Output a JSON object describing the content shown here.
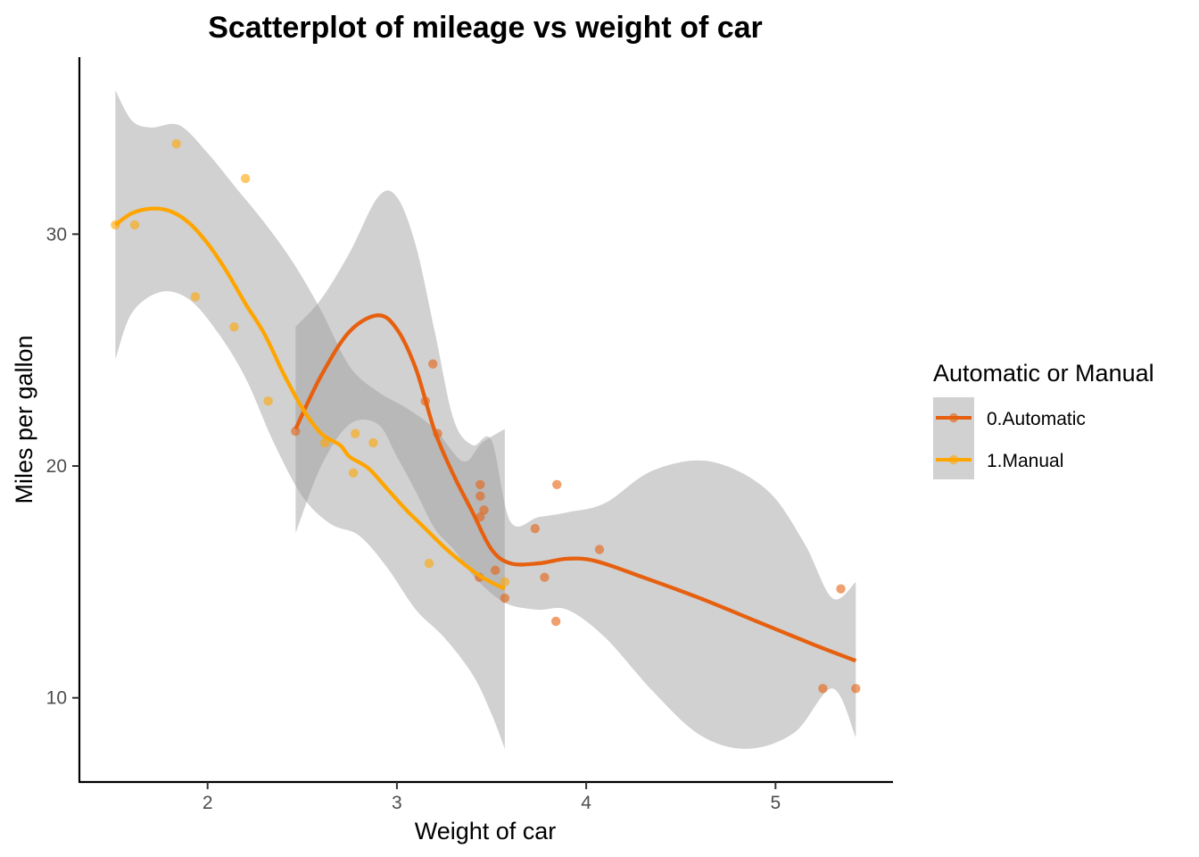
{
  "chart_data": {
    "type": "scatter",
    "title": "Scatterplot of mileage vs weight of car",
    "xlabel": "Weight of car",
    "ylabel": "Miles per gallon",
    "xlim": [
      1.3,
      5.6
    ],
    "ylim": [
      6.5,
      35.8
    ],
    "xticks": [
      2,
      3,
      4,
      5
    ],
    "yticks": [
      10,
      20,
      30
    ],
    "grid": false,
    "smoother": "loess with grey confidence band",
    "legend": {
      "title": "Automatic or Manual",
      "placement": "right"
    },
    "series": [
      {
        "name": "0.Automatic",
        "color": "#e6600f",
        "points": [
          {
            "x": 2.465,
            "y": 21.5
          },
          {
            "x": 3.15,
            "y": 22.8
          },
          {
            "x": 3.19,
            "y": 24.4
          },
          {
            "x": 3.215,
            "y": 21.4
          },
          {
            "x": 3.435,
            "y": 15.2
          },
          {
            "x": 3.44,
            "y": 18.7
          },
          {
            "x": 3.44,
            "y": 19.2
          },
          {
            "x": 3.44,
            "y": 17.8
          },
          {
            "x": 3.46,
            "y": 18.1
          },
          {
            "x": 3.52,
            "y": 15.5
          },
          {
            "x": 3.57,
            "y": 14.3
          },
          {
            "x": 3.73,
            "y": 17.3
          },
          {
            "x": 3.78,
            "y": 15.2
          },
          {
            "x": 3.84,
            "y": 13.3
          },
          {
            "x": 3.845,
            "y": 19.2
          },
          {
            "x": 4.07,
            "y": 16.4
          },
          {
            "x": 5.25,
            "y": 10.4
          },
          {
            "x": 5.345,
            "y": 14.7
          },
          {
            "x": 5.424,
            "y": 10.4
          }
        ],
        "smooth": [
          {
            "x": 2.465,
            "y": 21.6
          },
          {
            "x": 2.6,
            "y": 23.9
          },
          {
            "x": 2.75,
            "y": 25.8
          },
          {
            "x": 2.9,
            "y": 26.5
          },
          {
            "x": 3.0,
            "y": 25.9
          },
          {
            "x": 3.1,
            "y": 24.2
          },
          {
            "x": 3.2,
            "y": 21.5
          },
          {
            "x": 3.3,
            "y": 19.6
          },
          {
            "x": 3.4,
            "y": 18.0
          },
          {
            "x": 3.5,
            "y": 16.4
          },
          {
            "x": 3.6,
            "y": 15.8
          },
          {
            "x": 3.75,
            "y": 15.8
          },
          {
            "x": 3.9,
            "y": 16.0
          },
          {
            "x": 4.05,
            "y": 15.9
          },
          {
            "x": 4.3,
            "y": 15.2
          },
          {
            "x": 4.6,
            "y": 14.3
          },
          {
            "x": 4.9,
            "y": 13.3
          },
          {
            "x": 5.2,
            "y": 12.3
          },
          {
            "x": 5.424,
            "y": 11.6
          }
        ],
        "band_upper": [
          {
            "x": 2.465,
            "y": 26.0
          },
          {
            "x": 2.6,
            "y": 27.2
          },
          {
            "x": 2.75,
            "y": 29.2
          },
          {
            "x": 2.9,
            "y": 31.6
          },
          {
            "x": 3.0,
            "y": 31.6
          },
          {
            "x": 3.1,
            "y": 29.5
          },
          {
            "x": 3.2,
            "y": 25.8
          },
          {
            "x": 3.3,
            "y": 22.0
          },
          {
            "x": 3.4,
            "y": 20.9
          },
          {
            "x": 3.5,
            "y": 21.1
          },
          {
            "x": 3.6,
            "y": 17.6
          },
          {
            "x": 3.75,
            "y": 17.8
          },
          {
            "x": 3.9,
            "y": 18.0
          },
          {
            "x": 4.1,
            "y": 18.4
          },
          {
            "x": 4.35,
            "y": 19.8
          },
          {
            "x": 4.65,
            "y": 20.2
          },
          {
            "x": 4.95,
            "y": 19.0
          },
          {
            "x": 5.15,
            "y": 16.7
          },
          {
            "x": 5.3,
            "y": 14.3
          },
          {
            "x": 5.424,
            "y": 15.0
          }
        ],
        "band_lower": [
          {
            "x": 2.465,
            "y": 17.1
          },
          {
            "x": 2.6,
            "y": 20.0
          },
          {
            "x": 2.75,
            "y": 21.8
          },
          {
            "x": 2.9,
            "y": 21.8
          },
          {
            "x": 3.0,
            "y": 20.4
          },
          {
            "x": 3.1,
            "y": 18.9
          },
          {
            "x": 3.2,
            "y": 17.3
          },
          {
            "x": 3.3,
            "y": 16.4
          },
          {
            "x": 3.4,
            "y": 15.3
          },
          {
            "x": 3.5,
            "y": 14.5
          },
          {
            "x": 3.6,
            "y": 14.0
          },
          {
            "x": 3.75,
            "y": 13.8
          },
          {
            "x": 3.9,
            "y": 13.8
          },
          {
            "x": 4.1,
            "y": 12.6
          },
          {
            "x": 4.35,
            "y": 10.3
          },
          {
            "x": 4.6,
            "y": 8.4
          },
          {
            "x": 4.85,
            "y": 7.8
          },
          {
            "x": 5.1,
            "y": 8.5
          },
          {
            "x": 5.3,
            "y": 10.4
          },
          {
            "x": 5.424,
            "y": 8.3
          }
        ]
      },
      {
        "name": "1.Manual",
        "color": "#ffa500",
        "points": [
          {
            "x": 1.513,
            "y": 30.4
          },
          {
            "x": 1.615,
            "y": 30.4
          },
          {
            "x": 1.835,
            "y": 33.9
          },
          {
            "x": 1.935,
            "y": 27.3
          },
          {
            "x": 2.14,
            "y": 26.0
          },
          {
            "x": 2.2,
            "y": 32.4
          },
          {
            "x": 2.32,
            "y": 22.8
          },
          {
            "x": 2.62,
            "y": 21.0
          },
          {
            "x": 2.77,
            "y": 19.7
          },
          {
            "x": 2.78,
            "y": 21.4
          },
          {
            "x": 2.875,
            "y": 21.0
          },
          {
            "x": 3.17,
            "y": 15.8
          },
          {
            "x": 3.57,
            "y": 15.0
          }
        ],
        "smooth": [
          {
            "x": 1.513,
            "y": 30.4
          },
          {
            "x": 1.6,
            "y": 30.9
          },
          {
            "x": 1.7,
            "y": 31.1
          },
          {
            "x": 1.8,
            "y": 31.0
          },
          {
            "x": 1.9,
            "y": 30.5
          },
          {
            "x": 2.0,
            "y": 29.6
          },
          {
            "x": 2.1,
            "y": 28.4
          },
          {
            "x": 2.2,
            "y": 27.0
          },
          {
            "x": 2.3,
            "y": 25.7
          },
          {
            "x": 2.4,
            "y": 24.0
          },
          {
            "x": 2.5,
            "y": 22.5
          },
          {
            "x": 2.6,
            "y": 21.4
          },
          {
            "x": 2.7,
            "y": 20.9
          },
          {
            "x": 2.75,
            "y": 20.4
          },
          {
            "x": 2.85,
            "y": 19.9
          },
          {
            "x": 2.95,
            "y": 19.0
          },
          {
            "x": 3.05,
            "y": 18.1
          },
          {
            "x": 3.15,
            "y": 17.3
          },
          {
            "x": 3.25,
            "y": 16.5
          },
          {
            "x": 3.35,
            "y": 15.8
          },
          {
            "x": 3.45,
            "y": 15.2
          },
          {
            "x": 3.57,
            "y": 14.7
          }
        ],
        "band_upper": [
          {
            "x": 1.513,
            "y": 36.2
          },
          {
            "x": 1.6,
            "y": 34.9
          },
          {
            "x": 1.7,
            "y": 34.6
          },
          {
            "x": 1.85,
            "y": 34.7
          },
          {
            "x": 2.0,
            "y": 33.5
          },
          {
            "x": 2.15,
            "y": 32.0
          },
          {
            "x": 2.3,
            "y": 30.5
          },
          {
            "x": 2.45,
            "y": 28.8
          },
          {
            "x": 2.6,
            "y": 26.7
          },
          {
            "x": 2.75,
            "y": 24.3
          },
          {
            "x": 2.9,
            "y": 23.2
          },
          {
            "x": 3.05,
            "y": 22.5
          },
          {
            "x": 3.2,
            "y": 21.6
          },
          {
            "x": 3.35,
            "y": 20.2
          },
          {
            "x": 3.45,
            "y": 21.0
          },
          {
            "x": 3.57,
            "y": 21.6
          }
        ],
        "band_lower": [
          {
            "x": 1.513,
            "y": 24.6
          },
          {
            "x": 1.6,
            "y": 26.6
          },
          {
            "x": 1.75,
            "y": 27.5
          },
          {
            "x": 1.9,
            "y": 27.2
          },
          {
            "x": 2.05,
            "y": 25.8
          },
          {
            "x": 2.2,
            "y": 23.8
          },
          {
            "x": 2.35,
            "y": 21.0
          },
          {
            "x": 2.5,
            "y": 18.7
          },
          {
            "x": 2.65,
            "y": 17.5
          },
          {
            "x": 2.8,
            "y": 17.0
          },
          {
            "x": 2.95,
            "y": 15.6
          },
          {
            "x": 3.1,
            "y": 13.8
          },
          {
            "x": 3.25,
            "y": 12.6
          },
          {
            "x": 3.4,
            "y": 11.0
          },
          {
            "x": 3.5,
            "y": 9.3
          },
          {
            "x": 3.57,
            "y": 7.8
          }
        ]
      }
    ]
  }
}
